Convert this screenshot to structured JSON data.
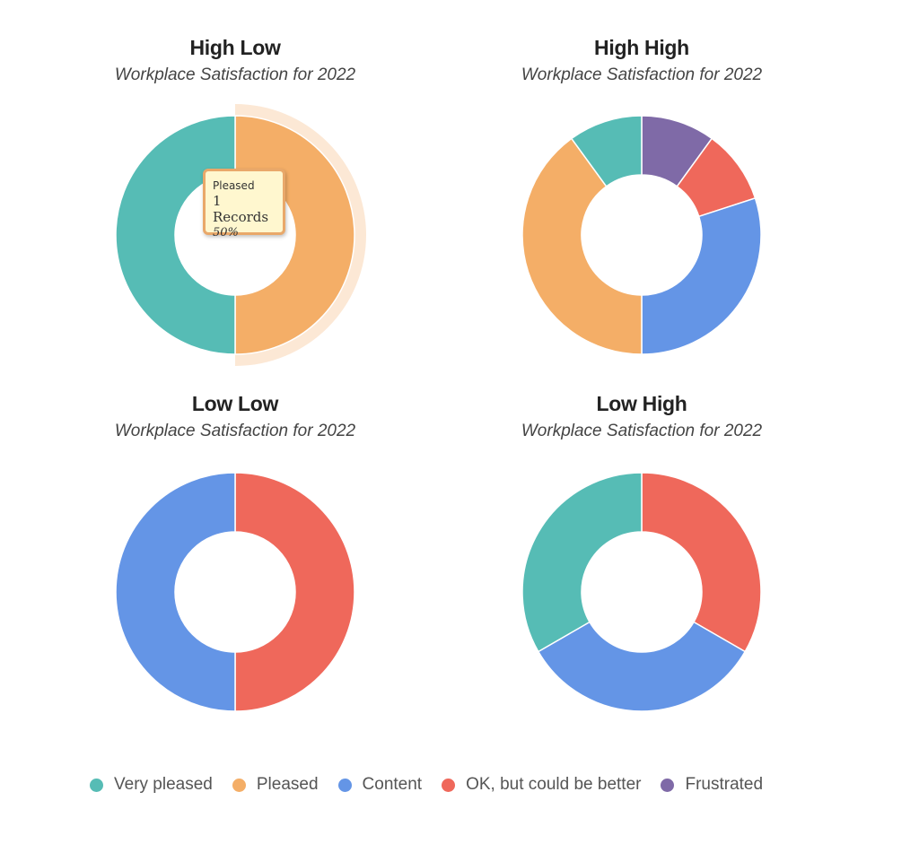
{
  "colors": {
    "Very pleased": "#56bcb5",
    "Pleased": "#f4ae67",
    "Content": "#6495e6",
    "OK, but could be better": "#ef685b",
    "Frustrated": "#7f6aa7"
  },
  "chart_data": [
    {
      "type": "pie",
      "title": "High Low",
      "subtitle": "Workplace Satisfaction for 2022",
      "donut": true,
      "categories": [
        "Pleased",
        "Very pleased"
      ],
      "values": [
        1,
        1
      ],
      "highlighted": "Pleased"
    },
    {
      "type": "pie",
      "title": "High High",
      "subtitle": "Workplace Satisfaction for 2022",
      "donut": true,
      "categories": [
        "Frustrated",
        "OK, but could be better",
        "Content",
        "Pleased",
        "Very pleased"
      ],
      "values": [
        1,
        1,
        3,
        4,
        1
      ]
    },
    {
      "type": "pie",
      "title": "Low Low",
      "subtitle": "Workplace Satisfaction for 2022",
      "donut": true,
      "categories": [
        "OK, but could be better",
        "Content"
      ],
      "values": [
        1,
        1
      ]
    },
    {
      "type": "pie",
      "title": "Low High",
      "subtitle": "Workplace Satisfaction for 2022",
      "donut": true,
      "categories": [
        "OK, but could be better",
        "Content",
        "Very pleased"
      ],
      "values": [
        1,
        1,
        1
      ]
    }
  ],
  "tooltip": {
    "label": "Pleased",
    "count": "1 Records",
    "percent": "50%"
  },
  "legend": [
    "Very pleased",
    "Pleased",
    "Content",
    "OK, but could be better",
    "Frustrated"
  ]
}
